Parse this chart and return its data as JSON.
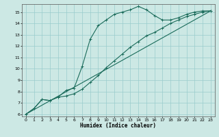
{
  "title": "",
  "xlabel": "Humidex (Indice chaleur)",
  "ylabel": "",
  "bg_color": "#cce8e4",
  "grid_color": "#99cccc",
  "line_color": "#1a6b5a",
  "xlim": [
    -0.5,
    23.5
  ],
  "ylim": [
    5.8,
    15.7
  ],
  "yticks": [
    6,
    7,
    8,
    9,
    10,
    11,
    12,
    13,
    14,
    15
  ],
  "xticks": [
    0,
    1,
    2,
    3,
    4,
    5,
    6,
    7,
    8,
    9,
    10,
    11,
    12,
    13,
    14,
    15,
    16,
    17,
    18,
    19,
    20,
    21,
    22,
    23
  ],
  "curve1_x": [
    0,
    1,
    2,
    3,
    4,
    5,
    6,
    7,
    8,
    9,
    10,
    11,
    12,
    13,
    14,
    15,
    16,
    17,
    18,
    19,
    20,
    21,
    22,
    23
  ],
  "curve1_y": [
    6.0,
    6.5,
    7.3,
    7.2,
    7.5,
    8.1,
    8.3,
    10.2,
    12.6,
    13.8,
    14.3,
    14.8,
    15.0,
    15.2,
    15.5,
    15.2,
    14.7,
    14.3,
    14.3,
    14.5,
    14.8,
    15.0,
    15.1,
    15.1
  ],
  "curve2_x": [
    0,
    1,
    2,
    3,
    4,
    5,
    6,
    7,
    8,
    9,
    10,
    11,
    12,
    13,
    14,
    15,
    16,
    17,
    18,
    19,
    20,
    21,
    22,
    23
  ],
  "curve2_y": [
    6.0,
    6.5,
    7.3,
    7.2,
    7.5,
    7.6,
    7.8,
    8.2,
    8.8,
    9.4,
    10.1,
    10.7,
    11.3,
    11.9,
    12.4,
    12.9,
    13.2,
    13.6,
    14.0,
    14.3,
    14.6,
    14.8,
    15.0,
    15.1
  ],
  "curve3_x": [
    0,
    23
  ],
  "curve3_y": [
    6.0,
    15.1
  ]
}
